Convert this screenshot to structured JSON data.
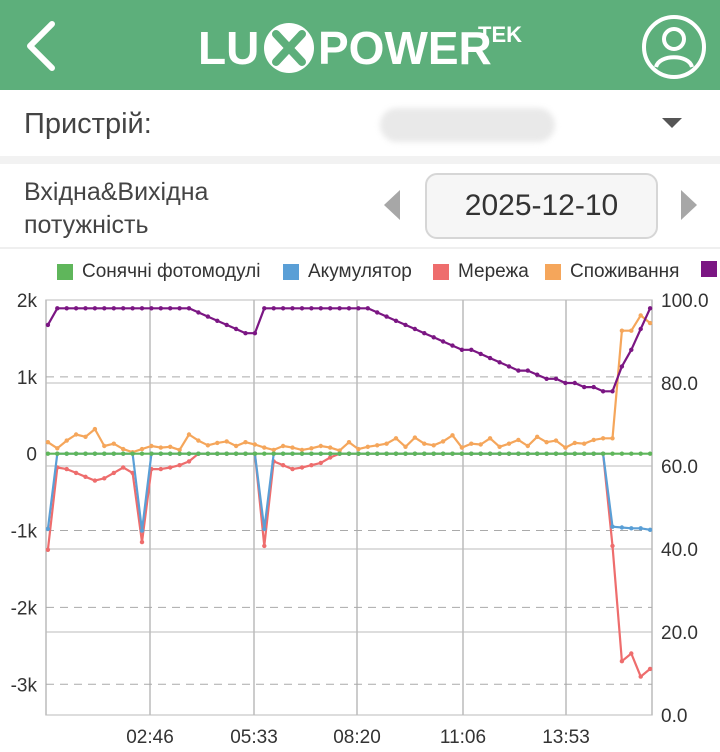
{
  "header": {
    "logo_text": "LUXPOWER",
    "logo_sup": "TEK"
  },
  "device": {
    "label": "Пристрій:",
    "value": ""
  },
  "chart_selector": {
    "type_label": "Вхідна&Вихідна потужність",
    "date": "2025-12-10"
  },
  "colors": {
    "header_bg": "#5daf7b",
    "pv": "#5fb65b",
    "battery": "#5a9fd6",
    "grid": "#ee6d6d",
    "consumption": "#f5a65b",
    "soc": "#7b1683"
  },
  "chart_data": {
    "type": "line",
    "x": [
      "00:15",
      "00:30",
      "00:45",
      "01:00",
      "01:15",
      "01:30",
      "01:45",
      "02:00",
      "02:15",
      "02:30",
      "02:45",
      "03:00",
      "03:15",
      "03:30",
      "03:45",
      "04:00",
      "04:15",
      "04:30",
      "04:45",
      "05:00",
      "05:15",
      "05:30",
      "05:45",
      "06:00",
      "06:15",
      "06:30",
      "06:45",
      "07:00",
      "07:15",
      "07:30",
      "07:45",
      "08:00",
      "08:15",
      "08:30",
      "08:45",
      "09:00",
      "09:15",
      "09:30",
      "09:45",
      "10:00",
      "10:15",
      "10:30",
      "10:45",
      "11:00",
      "11:15",
      "11:30",
      "11:45",
      "12:00",
      "12:15",
      "12:30",
      "12:45",
      "13:00",
      "13:15",
      "13:30",
      "13:45",
      "14:00",
      "14:15",
      "14:30",
      "14:45",
      "15:00",
      "15:15",
      "15:30",
      "15:45",
      "16:00",
      "16:15"
    ],
    "x_ticks": [
      "02:46",
      "05:33",
      "08:20",
      "11:06",
      "13:53"
    ],
    "y_left_ticks": [
      "2k",
      "1k",
      "0",
      "-1k",
      "-2k",
      "-3k"
    ],
    "y_left_range": [
      -3400,
      2000
    ],
    "y_right_ticks": [
      "100.0",
      "80.0",
      "60.0",
      "40.0",
      "20.0",
      "0.0"
    ],
    "y_right_range": [
      0,
      100
    ],
    "grid": true,
    "legend_position": "top",
    "series": [
      {
        "name": "Сонячні фотомодулі",
        "axis": "left",
        "values": [
          0,
          0,
          0,
          0,
          0,
          0,
          0,
          0,
          0,
          0,
          0,
          0,
          0,
          0,
          0,
          0,
          0,
          0,
          0,
          0,
          0,
          0,
          0,
          0,
          0,
          0,
          0,
          0,
          0,
          0,
          0,
          0,
          0,
          0,
          0,
          0,
          0,
          0,
          0,
          0,
          0,
          0,
          0,
          0,
          0,
          0,
          0,
          0,
          0,
          0,
          0,
          0,
          0,
          0,
          0,
          0,
          0,
          0,
          0,
          0,
          0,
          0,
          0,
          0,
          0
        ]
      },
      {
        "name": "Акумулятор",
        "axis": "left",
        "values": [
          -980,
          0,
          0,
          0,
          0,
          0,
          0,
          0,
          0,
          0,
          -1000,
          0,
          0,
          0,
          0,
          0,
          0,
          0,
          0,
          0,
          0,
          0,
          0,
          -980,
          0,
          0,
          0,
          0,
          0,
          0,
          0,
          0,
          0,
          0,
          0,
          0,
          0,
          0,
          0,
          0,
          0,
          0,
          0,
          0,
          0,
          0,
          0,
          0,
          0,
          0,
          0,
          0,
          0,
          0,
          0,
          0,
          0,
          0,
          0,
          0,
          -950,
          -960,
          -970,
          -970,
          -990
        ]
      },
      {
        "name": "Мережа",
        "axis": "left",
        "values": [
          -1250,
          -180,
          -200,
          -250,
          -300,
          -350,
          -320,
          -250,
          -180,
          -250,
          -1150,
          -200,
          -200,
          -180,
          -150,
          -100,
          0,
          0,
          0,
          0,
          0,
          0,
          0,
          -1200,
          -100,
          -150,
          -200,
          -180,
          -150,
          -120,
          -50,
          0,
          0,
          0,
          0,
          0,
          0,
          0,
          0,
          0,
          0,
          0,
          0,
          0,
          0,
          0,
          0,
          0,
          0,
          0,
          0,
          0,
          0,
          0,
          0,
          0,
          0,
          0,
          0,
          0,
          -1200,
          -2700,
          -2600,
          -2900,
          -2800
        ]
      },
      {
        "name": "Споживання",
        "axis": "left",
        "values": [
          150,
          70,
          170,
          250,
          220,
          320,
          100,
          130,
          60,
          20,
          60,
          100,
          80,
          90,
          50,
          250,
          170,
          110,
          140,
          160,
          100,
          150,
          120,
          80,
          50,
          100,
          80,
          50,
          70,
          100,
          80,
          40,
          150,
          60,
          90,
          110,
          130,
          200,
          90,
          210,
          130,
          110,
          160,
          240,
          80,
          130,
          120,
          200,
          90,
          130,
          180,
          100,
          220,
          150,
          170,
          80,
          140,
          130,
          180,
          200,
          200,
          1600,
          1600,
          1800,
          1700
        ]
      },
      {
        "name": "",
        "axis": "right",
        "values": [
          94,
          98,
          98,
          98,
          98,
          98,
          98,
          98,
          98,
          98,
          98,
          98,
          98,
          98,
          98,
          98,
          97,
          96,
          95,
          94,
          93,
          92,
          92,
          98,
          98,
          98,
          98,
          98,
          98,
          98,
          98,
          98,
          98,
          98,
          98,
          97,
          96,
          95,
          94,
          93,
          92,
          91,
          90,
          89,
          88,
          88,
          87,
          86,
          85,
          84,
          83,
          83,
          82,
          81,
          81,
          80,
          80,
          79,
          79,
          78,
          78,
          84,
          88,
          93,
          98
        ]
      }
    ]
  }
}
